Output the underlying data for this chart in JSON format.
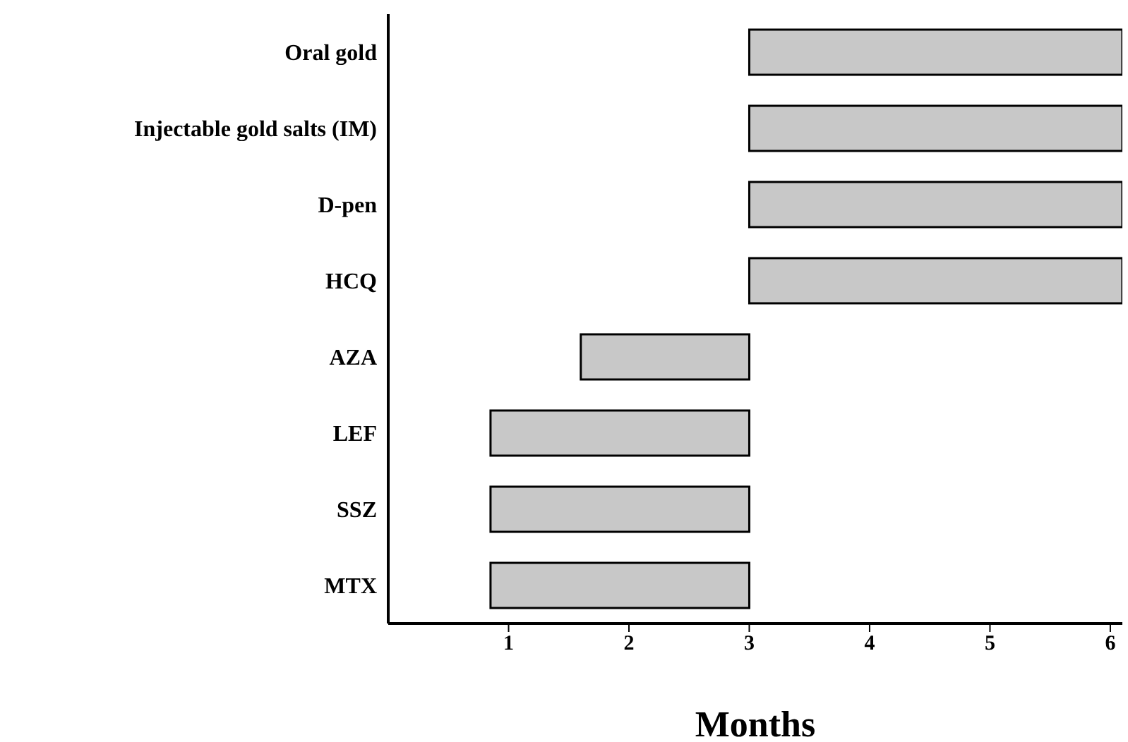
{
  "chart_data": {
    "type": "bar",
    "orientation": "horizontal",
    "xlabel": "Months",
    "categories": [
      "Oral gold",
      "Injectable gold salts (IM)",
      "D-pen",
      "HCQ",
      "AZA",
      "LEF",
      "SSZ",
      "MTX"
    ],
    "base": [
      3,
      3,
      3,
      3,
      1.6,
      0.85,
      0.85,
      0.85
    ],
    "values": [
      3.1,
      3.1,
      3.1,
      3.1,
      1.4,
      2.15,
      2.15,
      2.15
    ],
    "color": "#c8c8c8",
    "xlim": [
      0,
      6.1
    ],
    "xticks": [
      1,
      2,
      3,
      4,
      5,
      6
    ],
    "grid": false,
    "legend": false
  }
}
